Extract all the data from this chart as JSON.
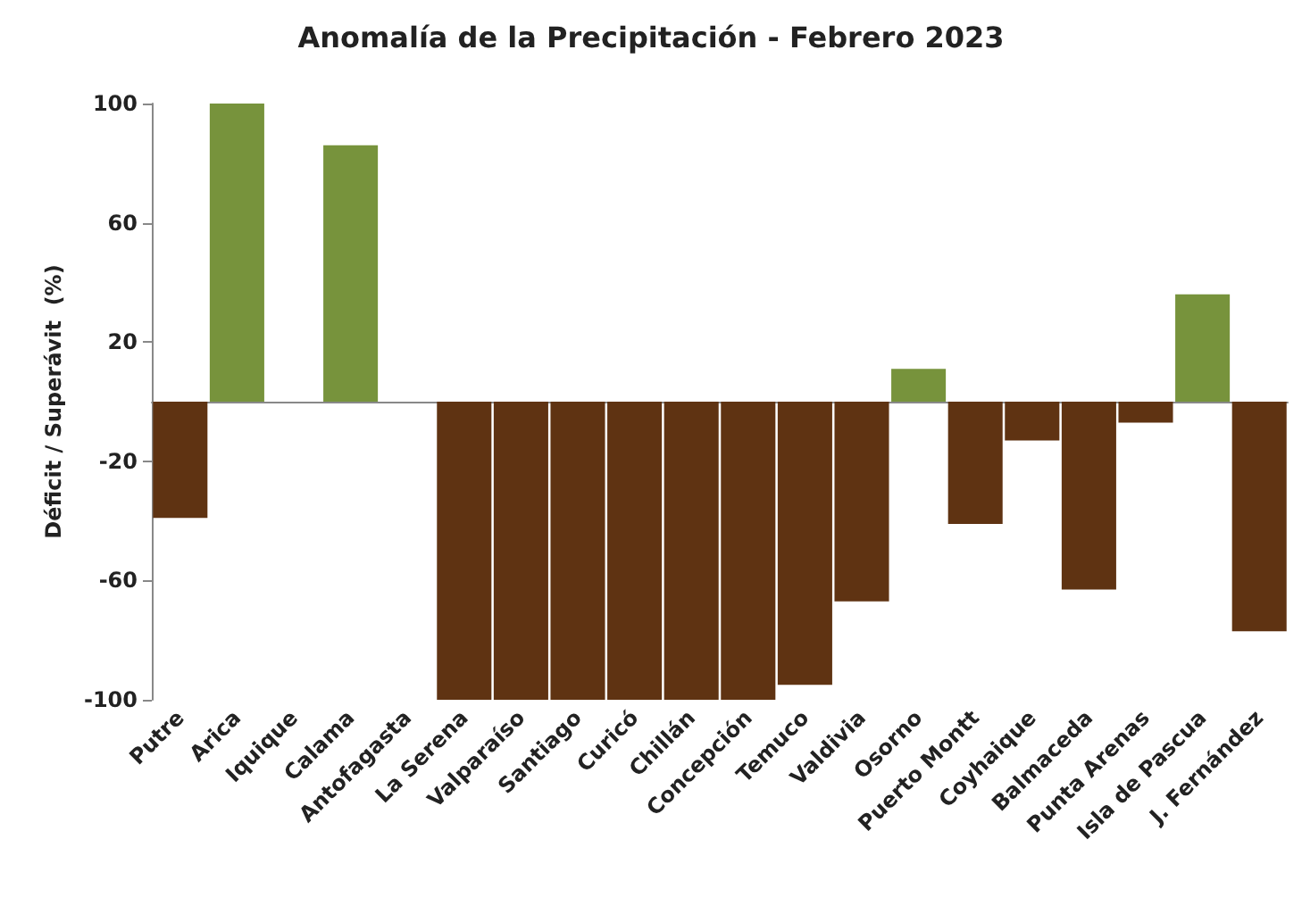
{
  "chart_data": {
    "type": "bar",
    "title": "Anomalía de la Precipitación - Febrero 2023",
    "ylabel": "Déficit / Superávit  (%)",
    "categories": [
      "Putre",
      "Arica",
      "Iquique",
      "Calama",
      "Antofagasta",
      "La Serena",
      "Valparaíso",
      "Santiago",
      "Curicó",
      "Chillán",
      "Concepción",
      "Temuco",
      "Valdivia",
      "Osorno",
      "Puerto Montt",
      "Coyhaique",
      "Balmaceda",
      "Punta Arenas",
      "Isla de Pascua",
      "J. Fernández"
    ],
    "values": [
      -39,
      100,
      0,
      86,
      0,
      -100,
      -100,
      -100,
      -100,
      -100,
      -100,
      -95,
      -67,
      11,
      -41,
      -13,
      -63,
      -7,
      36,
      -77
    ],
    "colors": [
      "#5f3312",
      "#77933c",
      "#77933c",
      "#77933c",
      "#77933c",
      "#5f3312",
      "#5f3312",
      "#5f3312",
      "#5f3312",
      "#5f3312",
      "#5f3312",
      "#5f3312",
      "#5f3312",
      "#77933c",
      "#5f3312",
      "#5f3312",
      "#5f3312",
      "#5f3312",
      "#77933c",
      "#5f3312"
    ],
    "ylim": [
      -100,
      100
    ],
    "yticks": [
      -100,
      -60,
      -20,
      20,
      60,
      100
    ],
    "grid": false
  }
}
